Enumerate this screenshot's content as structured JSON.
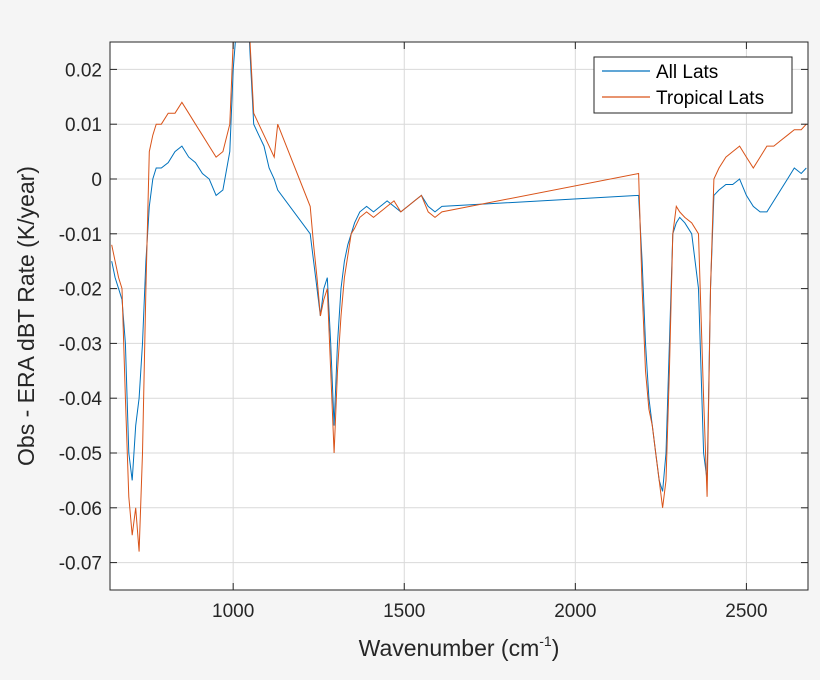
{
  "chart_data": {
    "type": "line",
    "title": "",
    "xlabel": "Wavenumber (cm",
    "xlabel_sup": "-1",
    "xlabel_end": ")",
    "ylabel": "Obs - ERA dBT Rate (K/year)",
    "xlim": [
      640,
      2680
    ],
    "ylim": [
      -0.075,
      0.025
    ],
    "xticks": [
      1000,
      1500,
      2000,
      2500
    ],
    "xtick_labels": [
      "1000",
      "1500",
      "2000",
      "2500"
    ],
    "yticks": [
      0.02,
      0.01,
      0,
      -0.01,
      -0.02,
      -0.03,
      -0.04,
      -0.05,
      -0.06,
      -0.07
    ],
    "ytick_labels": [
      "0.02",
      "0.01",
      "0",
      "-0.01",
      "-0.02",
      "-0.03",
      "-0.04",
      "-0.05",
      "-0.06",
      "-0.07"
    ],
    "grid": true,
    "legend_position": "top-right",
    "colors": {
      "all_lats": "#0072bd",
      "tropical_lats": "#d95319"
    },
    "series": [
      {
        "name": "All Lats",
        "x": [
          645,
          655,
          665,
          675,
          685,
          695,
          705,
          715,
          725,
          735,
          745,
          755,
          765,
          775,
          790,
          810,
          830,
          850,
          870,
          890,
          910,
          930,
          950,
          970,
          990,
          1000,
          1010,
          1020,
          1030,
          1045,
          1060,
          1075,
          1090,
          1105,
          1120,
          1130,
          1225,
          1235,
          1245,
          1255,
          1265,
          1275,
          1285,
          1295,
          1305,
          1315,
          1325,
          1335,
          1345,
          1355,
          1370,
          1390,
          1410,
          1430,
          1450,
          1470,
          1490,
          1510,
          1530,
          1550,
          1570,
          1590,
          1610,
          2185,
          2195,
          2205,
          2215,
          2225,
          2235,
          2245,
          2255,
          2265,
          2275,
          2285,
          2295,
          2305,
          2320,
          2340,
          2360,
          2375,
          2385,
          2395,
          2405,
          2420,
          2440,
          2460,
          2480,
          2500,
          2520,
          2540,
          2560,
          2580,
          2600,
          2620,
          2640,
          2660,
          2675
        ],
        "y": [
          -0.015,
          -0.018,
          -0.02,
          -0.022,
          -0.03,
          -0.05,
          -0.055,
          -0.045,
          -0.04,
          -0.03,
          -0.015,
          -0.005,
          0.0,
          0.002,
          0.002,
          0.003,
          0.005,
          0.006,
          0.004,
          0.003,
          0.001,
          0.0,
          -0.003,
          -0.002,
          0.005,
          0.02,
          0.028,
          0.03,
          0.03,
          0.028,
          0.01,
          0.008,
          0.006,
          0.002,
          0.0,
          -0.002,
          -0.01,
          -0.015,
          -0.02,
          -0.025,
          -0.02,
          -0.018,
          -0.03,
          -0.045,
          -0.03,
          -0.02,
          -0.015,
          -0.012,
          -0.01,
          -0.008,
          -0.006,
          -0.005,
          -0.006,
          -0.005,
          -0.004,
          -0.005,
          -0.006,
          -0.005,
          -0.004,
          -0.003,
          -0.005,
          -0.006,
          -0.005,
          -0.003,
          -0.015,
          -0.03,
          -0.04,
          -0.045,
          -0.05,
          -0.055,
          -0.057,
          -0.05,
          -0.03,
          -0.01,
          -0.008,
          -0.007,
          -0.008,
          -0.01,
          -0.02,
          -0.05,
          -0.055,
          -0.02,
          -0.003,
          -0.002,
          -0.001,
          -0.001,
          0.0,
          -0.003,
          -0.005,
          -0.006,
          -0.006,
          -0.004,
          -0.002,
          0.0,
          0.002,
          0.001,
          0.002
        ]
      },
      {
        "name": "Tropical Lats",
        "x": [
          645,
          655,
          665,
          675,
          685,
          695,
          705,
          715,
          725,
          735,
          745,
          755,
          765,
          775,
          790,
          810,
          830,
          850,
          870,
          890,
          910,
          930,
          950,
          970,
          990,
          1000,
          1010,
          1020,
          1030,
          1045,
          1060,
          1075,
          1090,
          1105,
          1120,
          1130,
          1225,
          1235,
          1245,
          1255,
          1265,
          1275,
          1285,
          1295,
          1305,
          1315,
          1325,
          1335,
          1345,
          1355,
          1370,
          1390,
          1410,
          1430,
          1450,
          1470,
          1490,
          1510,
          1530,
          1550,
          1570,
          1590,
          1610,
          2185,
          2195,
          2205,
          2215,
          2225,
          2235,
          2245,
          2255,
          2265,
          2275,
          2285,
          2295,
          2305,
          2320,
          2340,
          2360,
          2375,
          2385,
          2395,
          2405,
          2420,
          2440,
          2460,
          2480,
          2500,
          2520,
          2540,
          2560,
          2580,
          2600,
          2620,
          2640,
          2660,
          2675
        ],
        "y": [
          -0.012,
          -0.015,
          -0.018,
          -0.02,
          -0.04,
          -0.058,
          -0.065,
          -0.06,
          -0.068,
          -0.05,
          -0.02,
          0.005,
          0.008,
          0.01,
          0.01,
          0.012,
          0.012,
          0.014,
          0.012,
          0.01,
          0.008,
          0.006,
          0.004,
          0.005,
          0.01,
          0.025,
          0.03,
          0.03,
          0.03,
          0.03,
          0.012,
          0.01,
          0.008,
          0.006,
          0.004,
          0.01,
          -0.005,
          -0.012,
          -0.018,
          -0.025,
          -0.022,
          -0.02,
          -0.035,
          -0.05,
          -0.035,
          -0.025,
          -0.018,
          -0.014,
          -0.01,
          -0.009,
          -0.007,
          -0.006,
          -0.007,
          -0.006,
          -0.005,
          -0.004,
          -0.006,
          -0.005,
          -0.004,
          -0.003,
          -0.006,
          -0.007,
          -0.006,
          0.001,
          -0.02,
          -0.035,
          -0.042,
          -0.045,
          -0.05,
          -0.055,
          -0.06,
          -0.055,
          -0.035,
          -0.01,
          -0.005,
          -0.006,
          -0.007,
          -0.008,
          -0.01,
          -0.04,
          -0.058,
          -0.02,
          0.0,
          0.002,
          0.004,
          0.005,
          0.006,
          0.004,
          0.002,
          0.004,
          0.006,
          0.006,
          0.007,
          0.008,
          0.009,
          0.009,
          0.01
        ]
      }
    ]
  }
}
